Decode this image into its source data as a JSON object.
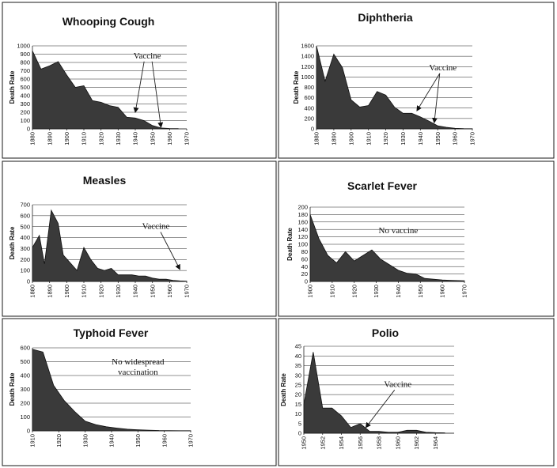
{
  "chart_data": [
    {
      "type": "area",
      "title": "Whooping Cough",
      "ylabel": "Death Rate",
      "x": [
        1880,
        1885,
        1890,
        1895,
        1900,
        1905,
        1910,
        1915,
        1920,
        1925,
        1930,
        1935,
        1940,
        1945,
        1950,
        1955,
        1960,
        1965
      ],
      "values": [
        940,
        720,
        760,
        810,
        650,
        500,
        520,
        340,
        320,
        280,
        260,
        140,
        130,
        100,
        40,
        10,
        5,
        3
      ],
      "ylim": [
        0,
        1000
      ],
      "yticks": [
        0,
        100,
        200,
        300,
        400,
        500,
        600,
        700,
        800,
        900,
        1000
      ],
      "xticks": [
        1880,
        1890,
        1900,
        1910,
        1920,
        1930,
        1940,
        1950,
        1960,
        1970
      ],
      "xlim": [
        1880,
        1970
      ],
      "annotation": {
        "text": "Vaccine",
        "text_x": 1947,
        "text_y": 850,
        "arrows": [
          {
            "to_x": 1940,
            "to_y": 200
          },
          {
            "to_x": 1955,
            "to_y": 20
          }
        ]
      }
    },
    {
      "type": "area",
      "title": "Diphtheria",
      "ylabel": "Death Rate",
      "x": [
        1880,
        1885,
        1890,
        1895,
        1900,
        1905,
        1910,
        1915,
        1920,
        1925,
        1930,
        1935,
        1940,
        1945,
        1950,
        1955,
        1960,
        1965,
        1970
      ],
      "values": [
        1600,
        920,
        1440,
        1180,
        560,
        420,
        450,
        720,
        650,
        420,
        300,
        300,
        230,
        150,
        60,
        30,
        10,
        5,
        3
      ],
      "ylim": [
        0,
        1600
      ],
      "yticks": [
        0,
        200,
        400,
        600,
        800,
        1000,
        1200,
        1400,
        1600
      ],
      "xticks": [
        1880,
        1890,
        1900,
        1910,
        1920,
        1930,
        1940,
        1950,
        1960,
        1970
      ],
      "xlim": [
        1880,
        1970
      ],
      "annotation": {
        "text": "Vaccine",
        "text_x": 1953,
        "text_y": 1130,
        "arrows": [
          {
            "to_x": 1938,
            "to_y": 350
          },
          {
            "to_x": 1948,
            "to_y": 120
          }
        ]
      }
    },
    {
      "type": "area",
      "title": "Measles",
      "ylabel": "Death Rate",
      "x": [
        1880,
        1884,
        1887,
        1891,
        1895,
        1898,
        1902,
        1906,
        1910,
        1914,
        1918,
        1922,
        1926,
        1930,
        1934,
        1938,
        1942,
        1946,
        1950,
        1954,
        1958,
        1962,
        1966,
        1970
      ],
      "values": [
        310,
        420,
        160,
        650,
        530,
        240,
        170,
        100,
        310,
        200,
        120,
        100,
        120,
        60,
        60,
        60,
        50,
        50,
        30,
        20,
        20,
        10,
        5,
        3
      ],
      "ylim": [
        0,
        700
      ],
      "yticks": [
        0,
        100,
        200,
        300,
        400,
        500,
        600,
        700
      ],
      "xticks": [
        1880,
        1890,
        1900,
        1910,
        1920,
        1930,
        1940,
        1950,
        1960,
        1970
      ],
      "xlim": [
        1880,
        1970
      ],
      "annotation": {
        "text": "Vaccine",
        "text_x": 1952,
        "text_y": 480,
        "arrows": [
          {
            "to_x": 1966,
            "to_y": 110
          }
        ]
      }
    },
    {
      "type": "area",
      "title": "Scarlet Fever",
      "ylabel": "Death Rate",
      "x": [
        1900,
        1904,
        1908,
        1912,
        1916,
        1920,
        1924,
        1928,
        1932,
        1936,
        1940,
        1944,
        1948,
        1952,
        1956,
        1960,
        1964,
        1970
      ],
      "values": [
        180,
        115,
        70,
        50,
        80,
        55,
        70,
        85,
        60,
        45,
        30,
        22,
        20,
        8,
        6,
        4,
        3,
        2
      ],
      "ylim": [
        0,
        200
      ],
      "yticks": [
        0,
        20,
        40,
        60,
        80,
        100,
        120,
        140,
        160,
        180,
        200
      ],
      "xticks": [
        1900,
        1910,
        1920,
        1930,
        1940,
        1950,
        1960,
        1970
      ],
      "xlim": [
        1900,
        1970
      ],
      "annotation": {
        "text": "No vaccine",
        "text_x": 1940,
        "text_y": 130,
        "arrows": []
      }
    },
    {
      "type": "area",
      "title": "Typhoid Fever",
      "ylabel": "Death Rate",
      "x": [
        1910,
        1914,
        1918,
        1922,
        1926,
        1930,
        1934,
        1938,
        1942,
        1946,
        1950,
        1954,
        1958,
        1962,
        1966,
        1970
      ],
      "values": [
        590,
        570,
        330,
        220,
        140,
        70,
        45,
        30,
        20,
        12,
        8,
        5,
        3,
        2,
        1,
        1
      ],
      "ylim": [
        0,
        600
      ],
      "yticks": [
        0,
        100,
        200,
        300,
        400,
        500,
        600
      ],
      "xticks": [
        1910,
        1920,
        1930,
        1940,
        1950,
        1960,
        1970
      ],
      "xlim": [
        1910,
        1970
      ],
      "annotation": {
        "text_lines": [
          "No widespread",
          "vaccination"
        ],
        "text_x": 1950,
        "text_y": 480,
        "arrows": []
      }
    },
    {
      "type": "area",
      "title": "Polio",
      "ylabel": "Death Rate",
      "x": [
        1950,
        1951,
        1952,
        1953,
        1954,
        1955,
        1956,
        1957,
        1958,
        1959,
        1960,
        1961,
        1962,
        1963,
        1964,
        1965
      ],
      "values": [
        15,
        42,
        13,
        13,
        9,
        3,
        5,
        1,
        1,
        0.5,
        0.5,
        1.5,
        1.5,
        0.5,
        0.3,
        0.2
      ],
      "ylim": [
        0,
        45
      ],
      "yticks": [
        0,
        5,
        10,
        15,
        20,
        25,
        30,
        35,
        40,
        45
      ],
      "xticks": [
        1950,
        1952,
        1954,
        1956,
        1958,
        1960,
        1962,
        1964
      ],
      "xlim": [
        1950,
        1966
      ],
      "annotation": {
        "text": "Vaccine",
        "text_x": 1960,
        "text_y": 24,
        "arrows": [
          {
            "to_x": 1956.6,
            "to_y": 3
          }
        ]
      }
    }
  ]
}
